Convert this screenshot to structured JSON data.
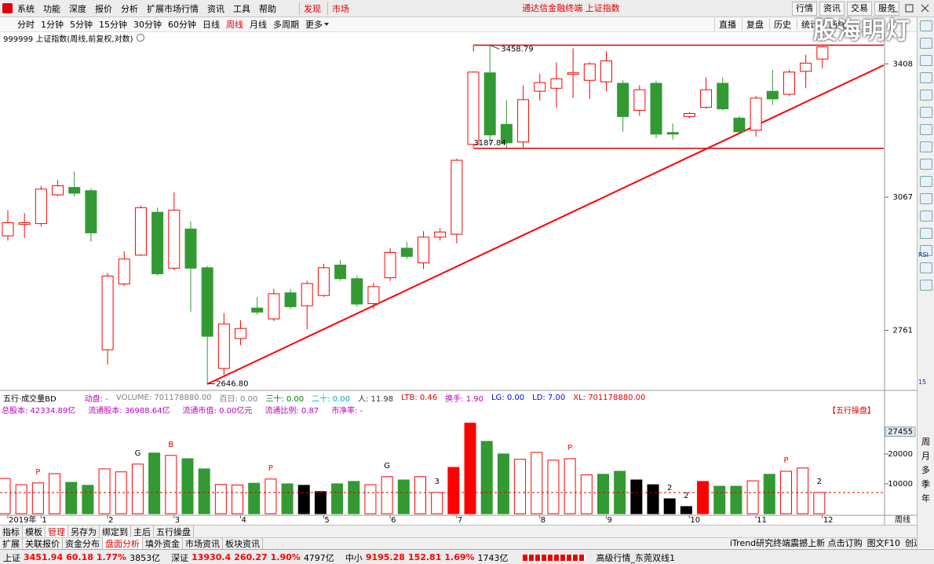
{
  "menu": {
    "items": [
      "系统",
      "功能",
      "深度",
      "报价",
      "分析",
      "扩展市场行情",
      "资讯",
      "工具",
      "帮助"
    ],
    "highlight": [
      "发现",
      "市场"
    ],
    "title": "通达信金融终端 上证指数",
    "right": [
      "行情",
      "资讯",
      "交易",
      "服务"
    ]
  },
  "toolbar": {
    "periods": [
      {
        "label": "分时",
        "selected": false
      },
      {
        "label": "1分钟",
        "selected": false
      },
      {
        "label": "5分钟",
        "selected": false
      },
      {
        "label": "15分钟",
        "selected": false
      },
      {
        "label": "30分钟",
        "selected": false
      },
      {
        "label": "60分钟",
        "selected": false
      },
      {
        "label": "日线",
        "selected": false
      },
      {
        "label": "周线",
        "selected": true
      },
      {
        "label": "月线",
        "selected": false
      },
      {
        "label": "多周期",
        "selected": false
      },
      {
        "label": "更多",
        "selected": false
      }
    ],
    "tools": [
      "直播",
      "复盘",
      "历史",
      "统计",
      "画线"
    ]
  },
  "watermark": "股海明灯",
  "chart_label": "999999 上证指数(周线,前复权,对数)",
  "chart_data": [
    {
      "type": "candlestick",
      "log_scale": true,
      "up_color": "#ff0000",
      "down_color": "#339933",
      "channel_lines": true,
      "trend_color": "#ff0000",
      "open": [
        2975,
        3002,
        3004,
        3073,
        3091,
        3083,
        2719,
        2864,
        2930,
        3031,
        2900,
        2991,
        2901,
        2679,
        2743,
        2810,
        2786,
        2844,
        2815,
        2838,
        2907,
        2876,
        2820,
        2878,
        2946,
        2912,
        2972,
        2979,
        3198,
        3384,
        3249,
        3204,
        3335,
        3343,
        3380,
        3364,
        3360,
        3356,
        3285,
        3356,
        3228,
        3269,
        3293,
        3356,
        3265,
        3234,
        3335,
        3327,
        3388,
        3421
      ],
      "high": [
        3036,
        3029,
        3095,
        3109,
        3130,
        3089,
        2889,
        2939,
        3047,
        3042,
        3079,
        3009,
        2905,
        2799,
        2783,
        2835,
        2853,
        2853,
        2871,
        2910,
        2919,
        2883,
        2867,
        2946,
        2961,
        2986,
        2993,
        3162,
        3388,
        3458.79,
        3311,
        3351,
        3382,
        3412,
        3450,
        3412,
        3442,
        3364,
        3351,
        3362,
        3251,
        3281,
        3372,
        3372,
        3271,
        3323,
        3392,
        3392,
        3433,
        3456
      ],
      "low": [
        2964,
        2970,
        2997,
        3069,
        3069,
        2961,
        2687,
        2860,
        2928,
        2883,
        2896,
        2802,
        2646.8,
        2665,
        2729,
        2795,
        2781,
        2808,
        2763,
        2835,
        2871,
        2813,
        2808,
        2871,
        2921,
        2898,
        2964,
        2957,
        3190,
        3198,
        3187.84,
        3190,
        3311,
        3291,
        3317,
        3315,
        3335,
        3230,
        3271,
        3214,
        3210,
        3265,
        3289,
        3285,
        3224,
        3218,
        3299,
        3323,
        3343,
        3396
      ],
      "close": [
        3006,
        3006,
        3087,
        3095,
        3077,
        2982,
        2882,
        2921,
        3042,
        2887,
        3036,
        2900,
        2748,
        2775,
        2765,
        2801,
        2842,
        2813,
        2865,
        2901,
        2876,
        2819,
        2858,
        2936,
        2927,
        2972,
        2984,
        3158,
        3386,
        3222,
        3202,
        3313,
        3358,
        3368,
        3384,
        3408,
        3416,
        3269,
        3339,
        3224,
        3224,
        3277,
        3339,
        3289,
        3230,
        3317,
        3315,
        3386,
        3410,
        3454
      ],
      "ylim": [
        2633,
        3490
      ],
      "yticks": [
        3408,
        3067,
        2761
      ],
      "annotations": [
        3458.79,
        3187.84,
        {
          "value": 2646.8,
          "label": "2646.80"
        }
      ]
    },
    {
      "type": "bar",
      "title": "五行·成交量BD",
      "categories": [
        "2019年",
        null,
        "1",
        null,
        null,
        null,
        "2",
        null,
        null,
        null,
        "3",
        null,
        null,
        null,
        "4",
        null,
        null,
        null,
        null,
        "5",
        null,
        null,
        null,
        "6",
        null,
        null,
        null,
        "7",
        null,
        null,
        null,
        null,
        "8",
        null,
        null,
        null,
        "9",
        null,
        null,
        null,
        null,
        "10",
        null,
        null,
        null,
        "11",
        null,
        null,
        null,
        "12"
      ],
      "values": [
        11800,
        9700,
        10300,
        13400,
        10500,
        9500,
        15000,
        14000,
        16600,
        20300,
        19500,
        18400,
        15000,
        9800,
        9600,
        10200,
        11600,
        10000,
        9500,
        7400,
        10000,
        10800,
        9700,
        12400,
        11300,
        12400,
        7100,
        15500,
        30300,
        24200,
        20000,
        18200,
        20500,
        17900,
        18400,
        13000,
        13200,
        14200,
        11300,
        9700,
        5000,
        2400,
        10800,
        9200,
        9200,
        11000,
        13200,
        14200,
        15300,
        7100
      ],
      "colors": [
        "#ff0000",
        "#ff0000",
        "#ff0000",
        "#ff0000",
        "#339933",
        "#339933",
        "#ff0000",
        "#ff0000",
        "#ff0000",
        "#339933",
        "#ff0000",
        "#339933",
        "#339933",
        "#ff0000",
        "#ff0000",
        "#339933",
        "#ff0000",
        "#339933",
        "#000000",
        "#000000",
        "#339933",
        "#339933",
        "#ff0000",
        "#ff0000",
        "#339933",
        "#ff0000",
        "#ff0000",
        "#ff0000",
        "#ff0000",
        "#339933",
        "#339933",
        "#ff0000",
        "#ff0000",
        "#ff0000",
        "#ff0000",
        "#ff0000",
        "#339933",
        "#339933",
        "#000000",
        "#000000",
        "#000000",
        "#000000",
        "#ff0000",
        "#339933",
        "#339933",
        "#ff0000",
        "#339933",
        "#ff0000",
        "#ff0000",
        "#ff0000"
      ],
      "filled": [
        false,
        false,
        false,
        false,
        true,
        true,
        false,
        false,
        false,
        true,
        false,
        true,
        true,
        false,
        false,
        true,
        false,
        true,
        true,
        true,
        true,
        true,
        false,
        false,
        true,
        false,
        false,
        true,
        true,
        true,
        true,
        false,
        false,
        false,
        false,
        false,
        true,
        true,
        true,
        true,
        true,
        true,
        true,
        true,
        true,
        false,
        true,
        false,
        false,
        false
      ],
      "signals": [
        null,
        null,
        {
          "label": "P",
          "color": "#ff0000"
        },
        null,
        null,
        null,
        null,
        null,
        {
          "label": "G",
          "color": "#000000"
        },
        null,
        {
          "label": "B",
          "color": "#c00000"
        },
        null,
        null,
        null,
        null,
        null,
        {
          "label": "P",
          "color": "#ff0000"
        },
        null,
        null,
        null,
        null,
        null,
        null,
        {
          "label": "G",
          "color": "#000000"
        },
        null,
        null,
        {
          "label": "3",
          "color": "#000000"
        },
        null,
        null,
        null,
        null,
        null,
        null,
        null,
        {
          "label": "P",
          "color": "#ff0000"
        },
        null,
        null,
        null,
        null,
        null,
        {
          "label": "2",
          "color": "#000000"
        },
        {
          "label": "2",
          "color": "#000000"
        },
        null,
        null,
        null,
        null,
        null,
        {
          "label": "P",
          "color": "#ff0000"
        },
        null,
        {
          "label": "2",
          "color": "#000000"
        }
      ],
      "ylim": [
        0,
        31000
      ],
      "yticks": [
        10000,
        20000
      ],
      "marker_value": 27455,
      "average_line": 7100,
      "period_label": "周线",
      "header": [
        {
          "text": "动盘: -",
          "color": "#c000c0"
        },
        {
          "text": "VOLUME: 701178880.00",
          "color": "#808080"
        },
        {
          "text": "百日: 0.00",
          "color": "#808080"
        },
        {
          "text": "三十: 0.00",
          "color": "#008000"
        },
        {
          "text": "二十: 0.00",
          "color": "#00b0c0"
        },
        {
          "text": "人: 11.98",
          "color": "#333333"
        },
        {
          "text": "LTB: 0.46",
          "color": "#e00000"
        },
        {
          "text": "换手: 1.90",
          "color": "#c000c0"
        },
        {
          "text": "LG: 0.00",
          "color": "#0000e0"
        },
        {
          "text": "LD: 7.00",
          "color": "#0000e0"
        },
        {
          "text": "XL: 701178880.00",
          "color": "#e00000"
        }
      ],
      "info": [
        "总股本: 42334.89亿",
        "流通股本: 36988.64亿",
        "流通市值: 0.00亿元",
        "流通比例: 0.87",
        "市净率: -"
      ],
      "badge": "【五行操盘】"
    }
  ],
  "tabs": {
    "row1": [
      {
        "label": "指标",
        "selected": false
      },
      {
        "label": "模板",
        "selected": false
      },
      {
        "label": "管理",
        "selected": true
      },
      {
        "label": "另存为",
        "selected": false
      },
      {
        "label": "绑定到",
        "selected": false
      },
      {
        "label": "主后",
        "selected": false
      },
      {
        "label": "五行操盘",
        "selected": false
      }
    ],
    "row2": [
      {
        "label": "扩展",
        "selected": false
      },
      {
        "label": "关联报价",
        "selected": false
      },
      {
        "label": "资金分布",
        "selected": false
      },
      {
        "label": "盘面分析",
        "selected": true
      },
      {
        "label": "填外资金",
        "selected": false
      },
      {
        "label": "市场资讯",
        "selected": false
      },
      {
        "label": "板块资讯",
        "selected": false
      }
    ],
    "right": [
      "iTrend研究终端震撼上新 点击订购",
      "图文F10",
      "创边栏"
    ]
  },
  "sidebar": {
    "icons": [
      "RSI",
      "15"
    ],
    "periods": [
      "周",
      "月",
      "多",
      "季",
      "年"
    ]
  },
  "status": {
    "groups": [
      {
        "name": "上证",
        "price": "3451.94",
        "change": "60.18",
        "percent": "1.77%",
        "amount": "3853亿",
        "color": "#ff0000"
      },
      {
        "name": "深证",
        "price": "13930.4",
        "change": "260.27",
        "percent": "1.90%",
        "amount": "4797亿",
        "color": "#ff0000"
      },
      {
        "name": "中小",
        "price": "9195.28",
        "change": "152.81",
        "percent": "1.69%",
        "amount": "1743亿",
        "color": "#ff0000"
      }
    ],
    "feed": "高级行情_东莞双线1"
  }
}
